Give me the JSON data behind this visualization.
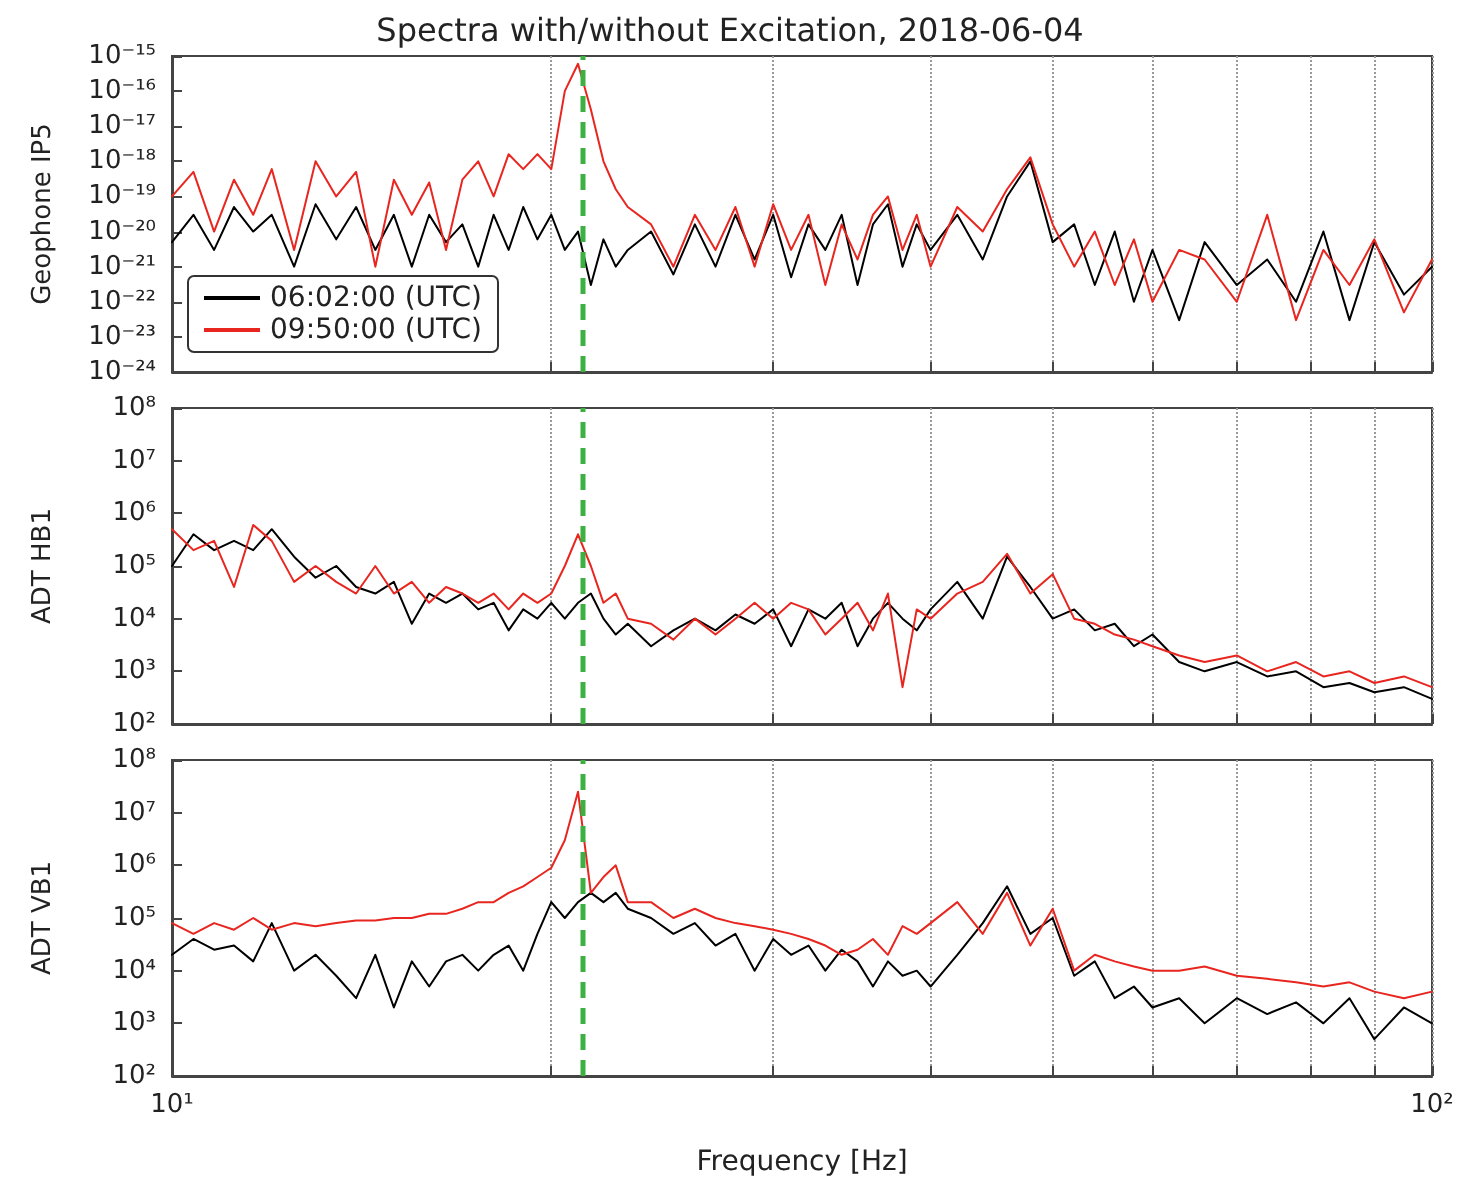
{
  "chart_data": [
    {
      "type": "line",
      "title": "Spectra with/without Excitation, 2018-06-04",
      "ylabel": "Geophone IP5",
      "log": "xy",
      "grid": "x",
      "legend": "bottom left",
      "marker": "none",
      "tick_labels": "y",
      "x": [
        10,
        10.4,
        10.8,
        11.2,
        11.6,
        12,
        12.5,
        13,
        13.5,
        14,
        14.5,
        15,
        15.5,
        16,
        16.5,
        17,
        17.5,
        18,
        18.5,
        19,
        19.5,
        20,
        20.5,
        21,
        21.5,
        22,
        22.5,
        23,
        24,
        25,
        26,
        27,
        28,
        29,
        30,
        31,
        32,
        33,
        34,
        35,
        36,
        37,
        38,
        39,
        40,
        42,
        44,
        46,
        48,
        50,
        52,
        54,
        56,
        58,
        60,
        63,
        66,
        70,
        74,
        78,
        82,
        86,
        90,
        95,
        100
      ],
      "xlim": [
        10,
        100
      ],
      "xticks": [
        {
          "value": 10,
          "label": null
        },
        {
          "value": 20,
          "label": null
        },
        {
          "value": 30,
          "label": null
        },
        {
          "value": 40,
          "label": null
        },
        {
          "value": 50,
          "label": null
        },
        {
          "value": 60,
          "label": null
        },
        {
          "value": 70,
          "label": null
        },
        {
          "value": 80,
          "label": null
        },
        {
          "value": 90,
          "label": null
        },
        {
          "value": 100,
          "label": null
        }
      ],
      "ylim": [
        1e-24,
        1e-15
      ],
      "yticks": [
        {
          "value": 1e-24,
          "label": "10⁻²⁴"
        },
        {
          "value": 1e-23,
          "label": "10⁻²³"
        },
        {
          "value": 1e-22,
          "label": "10⁻²²"
        },
        {
          "value": 1e-21,
          "label": "10⁻²¹"
        },
        {
          "value": 1e-20,
          "label": "10⁻²⁰"
        },
        {
          "value": 1e-19,
          "label": "10⁻¹⁹"
        },
        {
          "value": 1e-18,
          "label": "10⁻¹⁸"
        },
        {
          "value": 1e-17,
          "label": "10⁻¹⁷"
        },
        {
          "value": 1e-16,
          "label": "10⁻¹⁶"
        },
        {
          "value": 1e-15,
          "label": "10⁻¹⁵"
        }
      ],
      "ref_lines": [
        {
          "axis": "x",
          "value": 21.2,
          "color": "#3cb043",
          "line_style": "dashed"
        }
      ],
      "series": [
        {
          "name": "06:02:00 (UTC)",
          "color": "#000000",
          "values": [
            5e-21,
            3e-20,
            3e-21,
            5e-20,
            1e-20,
            3e-20,
            1e-21,
            6e-20,
            6e-21,
            5e-20,
            3e-21,
            3e-20,
            1e-21,
            3e-20,
            5e-21,
            1.6e-20,
            1e-21,
            3e-20,
            3e-21,
            5e-20,
            6e-21,
            3e-20,
            3e-21,
            1e-20,
            3e-22,
            6e-21,
            1e-21,
            3e-21,
            1e-20,
            6e-22,
            1.6e-20,
            1e-21,
            3e-20,
            1.6e-21,
            3e-20,
            5e-22,
            1.6e-20,
            3e-21,
            3e-20,
            3e-22,
            1.6e-20,
            6e-20,
            1e-21,
            1.6e-20,
            3e-21,
            3e-20,
            1.6e-21,
            1e-19,
            1e-18,
            5e-21,
            1.6e-20,
            3e-22,
            1e-20,
            1e-22,
            3e-21,
            3e-23,
            5e-21,
            3e-22,
            1.6e-21,
            1e-22,
            1e-20,
            3e-23,
            5e-21,
            1.6e-22,
            1e-21
          ]
        },
        {
          "name": "09:50:00 (UTC)",
          "color": "#e8261f",
          "values": [
            1e-19,
            5e-19,
            1e-20,
            3e-19,
            3e-20,
            6e-19,
            3e-21,
            1e-18,
            1e-19,
            5e-19,
            1e-21,
            3e-19,
            3e-20,
            2.5e-19,
            3e-21,
            3e-19,
            1e-18,
            1e-19,
            1.6e-18,
            6e-19,
            1.6e-18,
            6e-19,
            1e-16,
            6e-16,
            3e-17,
            1e-18,
            1.6e-19,
            5e-20,
            1.6e-20,
            1e-21,
            3e-20,
            3e-21,
            5e-20,
            1e-21,
            6e-20,
            3e-21,
            3e-20,
            3e-22,
            1.6e-20,
            1.6e-21,
            3e-20,
            1e-19,
            3e-21,
            3e-20,
            1e-21,
            5e-20,
            1e-20,
            1.6e-19,
            1.3e-18,
            1.6e-20,
            1e-21,
            1e-20,
            3e-22,
            6e-21,
            1e-22,
            3e-21,
            1.6e-21,
            1e-22,
            3e-20,
            3e-23,
            3e-21,
            3e-22,
            6e-21,
            5e-23,
            1.6e-21
          ]
        }
      ]
    },
    {
      "type": "line",
      "ylabel": "ADT HB1",
      "log": "xy",
      "grid": "x",
      "marker": "none",
      "tick_labels": "y",
      "x": [
        10,
        10.4,
        10.8,
        11.2,
        11.6,
        12,
        12.5,
        13,
        13.5,
        14,
        14.5,
        15,
        15.5,
        16,
        16.5,
        17,
        17.5,
        18,
        18.5,
        19,
        19.5,
        20,
        20.5,
        21,
        21.5,
        22,
        22.5,
        23,
        24,
        25,
        26,
        27,
        28,
        29,
        30,
        31,
        32,
        33,
        34,
        35,
        36,
        37,
        38,
        39,
        40,
        42,
        44,
        46,
        48,
        50,
        52,
        54,
        56,
        58,
        60,
        63,
        66,
        70,
        74,
        78,
        82,
        86,
        90,
        95,
        100
      ],
      "xlim": [
        10,
        100
      ],
      "xticks": [
        {
          "value": 10,
          "label": null
        },
        {
          "value": 20,
          "label": null
        },
        {
          "value": 30,
          "label": null
        },
        {
          "value": 40,
          "label": null
        },
        {
          "value": 50,
          "label": null
        },
        {
          "value": 60,
          "label": null
        },
        {
          "value": 70,
          "label": null
        },
        {
          "value": 80,
          "label": null
        },
        {
          "value": 90,
          "label": null
        },
        {
          "value": 100,
          "label": null
        }
      ],
      "ylim": [
        100,
        100000000
      ],
      "yticks": [
        {
          "value": 100,
          "label": "10²"
        },
        {
          "value": 1000,
          "label": "10³"
        },
        {
          "value": 10000,
          "label": "10⁴"
        },
        {
          "value": 100000,
          "label": "10⁵"
        },
        {
          "value": 1000000,
          "label": "10⁶"
        },
        {
          "value": 10000000,
          "label": "10⁷"
        },
        {
          "value": 100000000,
          "label": "10⁸"
        }
      ],
      "ref_lines": [
        {
          "axis": "x",
          "value": 21.2,
          "color": "#3cb043",
          "line_style": "dashed"
        }
      ],
      "series": [
        {
          "color": "#000000",
          "values": [
            100000.0,
            400000.0,
            200000.0,
            300000.0,
            200000.0,
            500000.0,
            150000.0,
            60000.0,
            100000.0,
            40000.0,
            30000.0,
            50000.0,
            8000.0,
            30000.0,
            20000.0,
            30000.0,
            15000.0,
            20000.0,
            6000.0,
            15000.0,
            10000.0,
            20000.0,
            10000.0,
            20000.0,
            30000.0,
            10000.0,
            5000.0,
            8000.0,
            3000.0,
            6000.0,
            10000.0,
            6000.0,
            12000.0,
            8000.0,
            15000.0,
            3000.0,
            15000.0,
            10000.0,
            20000.0,
            3000.0,
            10000.0,
            20000.0,
            10000.0,
            6000.0,
            15000.0,
            50000.0,
            10000.0,
            150000.0,
            40000.0,
            10000.0,
            15000.0,
            6000.0,
            8000.0,
            3000.0,
            5000.0,
            1500.0,
            1000.0,
            1500.0,
            800,
            1000.0,
            500,
            600,
            400,
            500,
            300
          ]
        },
        {
          "color": "#e8261f",
          "values": [
            500000.0,
            200000.0,
            300000.0,
            40000.0,
            600000.0,
            300000.0,
            50000.0,
            100000.0,
            50000.0,
            30000.0,
            100000.0,
            30000.0,
            50000.0,
            20000.0,
            40000.0,
            30000.0,
            20000.0,
            30000.0,
            15000.0,
            30000.0,
            20000.0,
            30000.0,
            100000.0,
            400000.0,
            100000.0,
            20000.0,
            30000.0,
            10000.0,
            8000.0,
            4000.0,
            10000.0,
            5000.0,
            10000.0,
            20000.0,
            10000.0,
            20000.0,
            15000.0,
            5000.0,
            10000.0,
            20000.0,
            6000.0,
            30000.0,
            500,
            15000.0,
            10000.0,
            30000.0,
            50000.0,
            170000.0,
            30000.0,
            70000.0,
            10000.0,
            8000.0,
            5000.0,
            4000.0,
            3000.0,
            2000.0,
            1500.0,
            2000.0,
            1000.0,
            1500.0,
            800,
            1000.0,
            600,
            800,
            500
          ]
        }
      ]
    },
    {
      "type": "line",
      "ylabel": "ADT VB1",
      "xlabel": "Frequency [Hz]",
      "log": "xy",
      "grid": "x",
      "marker": "none",
      "x": [
        10,
        10.4,
        10.8,
        11.2,
        11.6,
        12,
        12.5,
        13,
        13.5,
        14,
        14.5,
        15,
        15.5,
        16,
        16.5,
        17,
        17.5,
        18,
        18.5,
        19,
        19.5,
        20,
        20.5,
        21,
        21.5,
        22,
        22.5,
        23,
        24,
        25,
        26,
        27,
        28,
        29,
        30,
        31,
        32,
        33,
        34,
        35,
        36,
        37,
        38,
        39,
        40,
        42,
        44,
        46,
        48,
        50,
        52,
        54,
        56,
        58,
        60,
        63,
        66,
        70,
        74,
        78,
        82,
        86,
        90,
        95,
        100
      ],
      "xlim": [
        10,
        100
      ],
      "xticks": [
        {
          "value": 10,
          "label": "10¹"
        },
        {
          "value": 20,
          "label": null
        },
        {
          "value": 30,
          "label": null
        },
        {
          "value": 40,
          "label": null
        },
        {
          "value": 50,
          "label": null
        },
        {
          "value": 60,
          "label": null
        },
        {
          "value": 70,
          "label": null
        },
        {
          "value": 80,
          "label": null
        },
        {
          "value": 90,
          "label": null
        },
        {
          "value": 100,
          "label": "10²"
        }
      ],
      "ylim": [
        100,
        100000000
      ],
      "yticks": [
        {
          "value": 100,
          "label": "10²"
        },
        {
          "value": 1000,
          "label": "10³"
        },
        {
          "value": 10000,
          "label": "10⁴"
        },
        {
          "value": 100000,
          "label": "10⁵"
        },
        {
          "value": 1000000,
          "label": "10⁶"
        },
        {
          "value": 10000000,
          "label": "10⁷"
        },
        {
          "value": 100000000,
          "label": "10⁸"
        }
      ],
      "ref_lines": [
        {
          "axis": "x",
          "value": 21.2,
          "color": "#3cb043",
          "line_style": "dashed"
        }
      ],
      "series": [
        {
          "color": "#000000",
          "values": [
            20000.0,
            40000.0,
            25000.0,
            30000.0,
            15000.0,
            80000.0,
            10000.0,
            20000.0,
            8000.0,
            3000.0,
            20000.0,
            2000.0,
            15000.0,
            5000.0,
            15000.0,
            20000.0,
            10000.0,
            20000.0,
            30000.0,
            10000.0,
            50000.0,
            200000.0,
            100000.0,
            200000.0,
            300000.0,
            200000.0,
            300000.0,
            150000.0,
            100000.0,
            50000.0,
            80000.0,
            30000.0,
            50000.0,
            10000.0,
            40000.0,
            20000.0,
            30000.0,
            10000.0,
            25000.0,
            15000.0,
            5000.0,
            15000.0,
            8000.0,
            10000.0,
            5000.0,
            20000.0,
            80000.0,
            400000.0,
            50000.0,
            100000.0,
            8000.0,
            15000.0,
            3000.0,
            5000.0,
            2000.0,
            3000.0,
            1000.0,
            3000.0,
            1500.0,
            2500.0,
            1000.0,
            3000.0,
            500,
            2000.0,
            1000.0
          ]
        },
        {
          "color": "#e8261f",
          "values": [
            80000.0,
            50000.0,
            80000.0,
            60000.0,
            100000.0,
            60000.0,
            80000.0,
            70000.0,
            80000.0,
            90000.0,
            90000.0,
            100000.0,
            100000.0,
            120000.0,
            120000.0,
            150000.0,
            200000.0,
            200000.0,
            300000.0,
            400000.0,
            600000.0,
            900000.0,
            3000000.0,
            25000000.0,
            300000.0,
            600000.0,
            1000000.0,
            200000.0,
            200000.0,
            100000.0,
            150000.0,
            100000.0,
            80000.0,
            70000.0,
            60000.0,
            50000.0,
            40000.0,
            30000.0,
            20000.0,
            25000.0,
            40000.0,
            20000.0,
            70000.0,
            50000.0,
            80000.0,
            200000.0,
            50000.0,
            300000.0,
            30000.0,
            150000.0,
            10000.0,
            20000.0,
            15000.0,
            12000.0,
            10000.0,
            10000.0,
            12000.0,
            8000.0,
            7000.0,
            6000.0,
            5000.0,
            6000.0,
            4000.0,
            3000.0,
            4000.0
          ]
        }
      ]
    }
  ]
}
